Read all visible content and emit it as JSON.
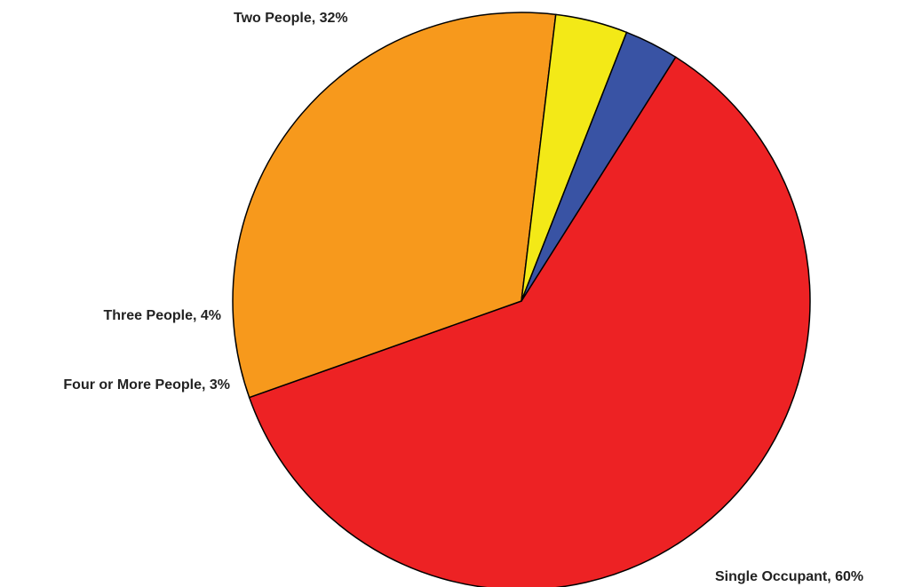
{
  "chart_data": {
    "type": "pie",
    "title": "",
    "slices": [
      {
        "label": "Single Occupant",
        "value": 60,
        "display": "Single Occupant, 60%",
        "color": "#ED2224"
      },
      {
        "label": "Two People",
        "value": 32,
        "display": "Two People, 32%",
        "color": "#F7991C"
      },
      {
        "label": "Three People",
        "value": 4,
        "display": "Three People, 4%",
        "color": "#F3E917"
      },
      {
        "label": "Four or More People",
        "value": 3,
        "display": "Four or More People, 3%",
        "color": "#3953A4"
      }
    ],
    "legend": "none",
    "labels": "outside"
  }
}
